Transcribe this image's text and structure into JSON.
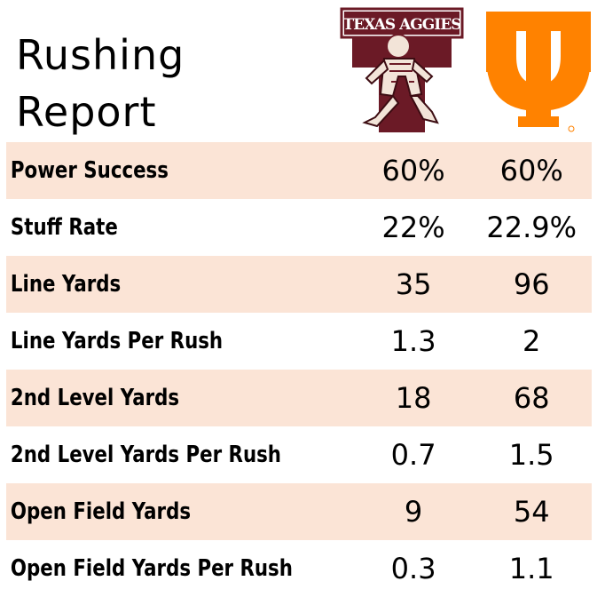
{
  "title": {
    "line1": "Rushing",
    "line2": "Report"
  },
  "logos": {
    "team1": {
      "name": "Texas A&M Aggies",
      "text": "TEXAS AGGIES",
      "color": "#6b1a26"
    },
    "team2": {
      "name": "Tennessee",
      "color": "#ff8200"
    }
  },
  "colors": {
    "row_highlight": "#fbe4d6"
  },
  "rows": [
    {
      "label": "Power Success",
      "team1": "60%",
      "team2": "60%"
    },
    {
      "label": "Stuff Rate",
      "team1": "22%",
      "team2": "22.9%"
    },
    {
      "label": "Line Yards",
      "team1": "35",
      "team2": "96"
    },
    {
      "label": "Line Yards Per Rush",
      "team1": "1.3",
      "team2": "2"
    },
    {
      "label": "2nd Level Yards",
      "team1": "18",
      "team2": "68"
    },
    {
      "label": "2nd Level Yards Per Rush",
      "team1": "0.7",
      "team2": "1.5"
    },
    {
      "label": "Open Field Yards",
      "team1": "9",
      "team2": "54"
    },
    {
      "label": "Open Field Yards Per Rush",
      "team1": "0.3",
      "team2": "1.1"
    }
  ]
}
